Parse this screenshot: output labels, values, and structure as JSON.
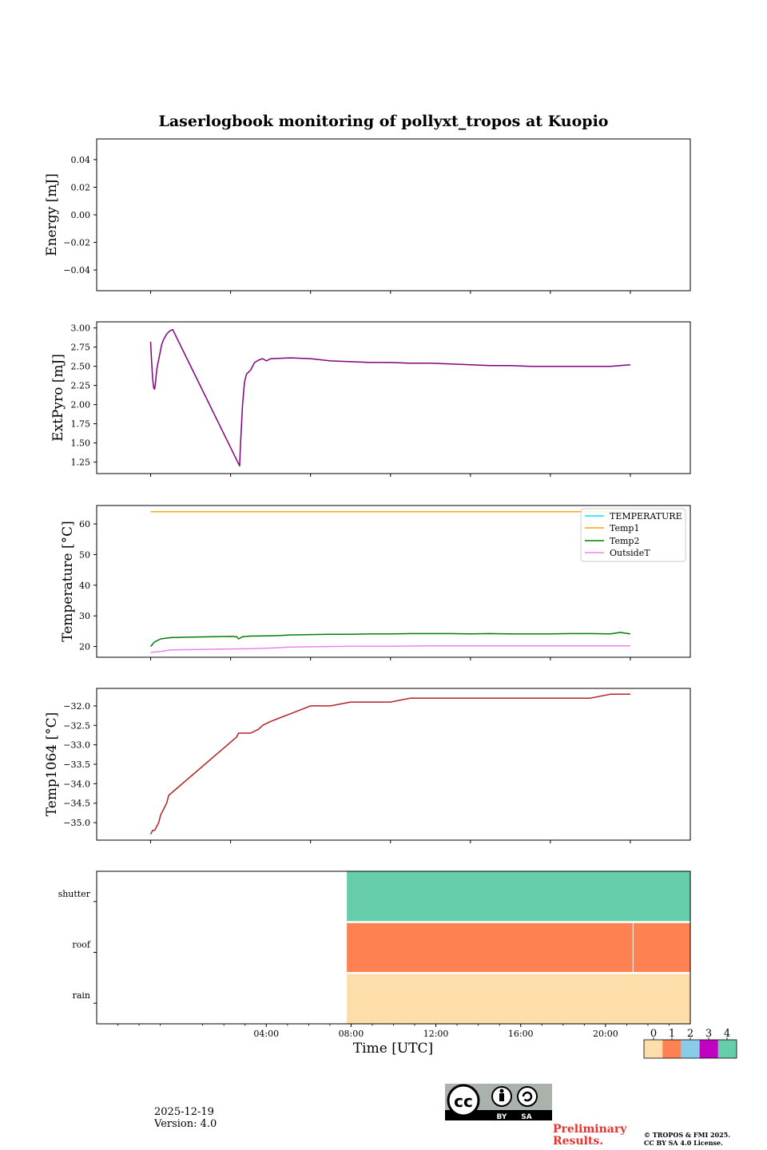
{
  "page_title": "Laserlogbook monitoring of pollyxt_tropos at Kuopio",
  "footer": {
    "date": "2025-12-19",
    "version": "Version: 4.0",
    "preliminary_line1": "Preliminary",
    "preliminary_line2": "Results.",
    "copyright_line1": "© TROPOS & FMI 2025.",
    "copyright_line2": "CC BY SA 4.0 License.",
    "license_badge": {
      "by": "BY",
      "sa": "SA"
    }
  },
  "colorbar": {
    "ticks": [
      "0",
      "1",
      "2",
      "3",
      "4"
    ],
    "colors": [
      "#fddeaa",
      "#fe8152",
      "#88cce8",
      "#c102c1",
      "#66cdab"
    ]
  },
  "chart_data": [
    {
      "type": "line",
      "id": "energy",
      "ylabel": "Energy [mJ]",
      "ylim": [
        -0.055,
        0.055
      ],
      "yticks": [
        "0.04",
        "0.02",
        "0.00",
        "−0.02",
        "−0.04"
      ],
      "ytick_values": [
        0.04,
        0.02,
        0.0,
        -0.02,
        -0.04
      ],
      "xlim_hours": [
        -2.7,
        27.0
      ],
      "xticks_hours": [
        0,
        4,
        8,
        12,
        16,
        20,
        24
      ],
      "series": []
    },
    {
      "type": "line",
      "id": "extpyro",
      "ylabel": "ExtPyro [mJ]",
      "ylim": [
        1.1,
        3.08
      ],
      "yticks": [
        "3.00",
        "2.75",
        "2.50",
        "2.25",
        "2.00",
        "1.75",
        "1.50",
        "1.25"
      ],
      "ytick_values": [
        3.0,
        2.75,
        2.5,
        2.25,
        2.0,
        1.75,
        1.5,
        1.25
      ],
      "xlim_hours": [
        -2.7,
        27.0
      ],
      "xticks_hours": [
        0,
        4,
        8,
        12,
        16,
        20,
        24
      ],
      "series": [
        {
          "name": "ExtPyro",
          "color": "#800080",
          "x": [
            0.0,
            0.05,
            0.1,
            0.15,
            0.2,
            0.25,
            0.3,
            0.35,
            0.45,
            0.55,
            0.65,
            0.8,
            0.95,
            1.1,
            4.45,
            4.5,
            4.6,
            4.7,
            4.8,
            5.0,
            5.2,
            5.4,
            5.6,
            5.8,
            6.0,
            7.0,
            8.0,
            9.0,
            10.0,
            11.0,
            12.0,
            13.0,
            14.0,
            15.0,
            16.0,
            17.0,
            18.0,
            19.0,
            20.0,
            21.0,
            22.0,
            23.0,
            24.0
          ],
          "y": [
            2.82,
            2.55,
            2.35,
            2.22,
            2.2,
            2.3,
            2.45,
            2.52,
            2.65,
            2.78,
            2.85,
            2.92,
            2.96,
            2.98,
            1.2,
            1.5,
            2.0,
            2.3,
            2.4,
            2.45,
            2.55,
            2.58,
            2.6,
            2.57,
            2.6,
            2.61,
            2.6,
            2.57,
            2.56,
            2.55,
            2.55,
            2.54,
            2.54,
            2.53,
            2.52,
            2.51,
            2.51,
            2.5,
            2.5,
            2.5,
            2.5,
            2.5,
            2.52
          ]
        }
      ]
    },
    {
      "type": "line",
      "id": "temperature",
      "ylabel": "Temperature [°C]",
      "ylim": [
        16.5,
        66
      ],
      "yticks": [
        "60",
        "50",
        "40",
        "30",
        "20"
      ],
      "ytick_values": [
        60,
        50,
        40,
        30,
        20
      ],
      "xlim_hours": [
        -2.7,
        27.0
      ],
      "xticks_hours": [
        0,
        4,
        8,
        12,
        16,
        20,
        24
      ],
      "legend": [
        "TEMPERATURE",
        "Temp1",
        "Temp2",
        "OutsideT"
      ],
      "series": [
        {
          "name": "TEMPERATURE",
          "color": "#00e5e5",
          "x": [],
          "y": []
        },
        {
          "name": "Temp1",
          "color": "#ffa500",
          "x": [
            0,
            24
          ],
          "y": [
            64,
            64
          ]
        },
        {
          "name": "Temp2",
          "color": "#008000",
          "x": [
            0.0,
            0.2,
            0.5,
            1.0,
            2.0,
            4.0,
            4.3,
            4.4,
            4.6,
            5.0,
            6.0,
            6.5,
            7.0,
            8.0,
            9.0,
            10.0,
            11.0,
            12.0,
            13.0,
            14.0,
            15.0,
            16.0,
            17.0,
            18.0,
            19.0,
            20.0,
            21.0,
            22.0,
            23.0,
            23.5,
            24.0
          ],
          "y": [
            20.0,
            21.5,
            22.5,
            22.9,
            23.1,
            23.3,
            23.2,
            22.5,
            23.2,
            23.4,
            23.5,
            23.6,
            23.8,
            23.9,
            24.0,
            24.0,
            24.1,
            24.1,
            24.2,
            24.2,
            24.2,
            24.1,
            24.2,
            24.1,
            24.1,
            24.1,
            24.2,
            24.2,
            24.1,
            24.6,
            24.1
          ]
        },
        {
          "name": "OutsideT",
          "color": "#ee82ee",
          "x": [
            0.0,
            0.5,
            1.0,
            2.0,
            4.0,
            5.0,
            6.0,
            7.0,
            8.0,
            10.0,
            12.0,
            14.0,
            16.0,
            18.0,
            20.0,
            22.0,
            24.0
          ],
          "y": [
            18.1,
            18.4,
            18.9,
            19.0,
            19.2,
            19.3,
            19.5,
            19.8,
            19.9,
            20.1,
            20.1,
            20.2,
            20.2,
            20.2,
            20.2,
            20.2,
            20.2
          ]
        }
      ]
    },
    {
      "type": "line",
      "id": "temp1064",
      "ylabel": "Temp1064 [°C]",
      "ylim": [
        -35.45,
        -31.55
      ],
      "yticks": [
        "−32.0",
        "−32.5",
        "−33.0",
        "−33.5",
        "−34.0",
        "−34.5",
        "−35.0"
      ],
      "ytick_values": [
        -32.0,
        -32.5,
        -33.0,
        -33.5,
        -34.0,
        -34.5,
        -35.0
      ],
      "xlim_hours": [
        -2.7,
        27.0
      ],
      "xticks_hours": [
        0,
        4,
        8,
        12,
        16,
        20,
        24
      ],
      "series": [
        {
          "name": "Temp1064",
          "color": "#b22222",
          "x": [
            0.0,
            0.1,
            0.2,
            0.3,
            0.4,
            0.5,
            0.6,
            0.8,
            0.9,
            4.3,
            4.4,
            5.0,
            5.4,
            5.6,
            6.0,
            6.5,
            7.0,
            7.5,
            8.0,
            8.5,
            9.0,
            10.0,
            11.0,
            12.0,
            13.0,
            14.0,
            15.0,
            16.0,
            17.0,
            18.0,
            19.0,
            20.0,
            21.0,
            22.0,
            23.0,
            24.0
          ],
          "y": [
            -35.3,
            -35.2,
            -35.2,
            -35.1,
            -35.0,
            -34.8,
            -34.7,
            -34.5,
            -34.3,
            -32.8,
            -32.7,
            -32.7,
            -32.6,
            -32.5,
            -32.4,
            -32.3,
            -32.2,
            -32.1,
            -32.0,
            -32.0,
            -32.0,
            -31.9,
            -31.9,
            -31.9,
            -31.8,
            -31.8,
            -31.8,
            -31.8,
            -31.8,
            -31.8,
            -31.8,
            -31.8,
            -31.8,
            -31.8,
            -31.7,
            -31.7
          ]
        }
      ]
    },
    {
      "type": "heatmap",
      "id": "status",
      "xlabel": "Time [UTC]",
      "rows": [
        "shutter",
        "roof",
        "rain"
      ],
      "xlim_hours": [
        -4.0,
        24.0
      ],
      "xticks": [
        "04:00",
        "08:00",
        "12:00",
        "16:00",
        "20:00"
      ],
      "xtick_hours": [
        4,
        8,
        12,
        16,
        20
      ],
      "data_start_hour": 7.8,
      "roof_gap_hour": 21.3,
      "values": {
        "shutter": 4,
        "roof": 1,
        "rain": 0
      }
    }
  ]
}
